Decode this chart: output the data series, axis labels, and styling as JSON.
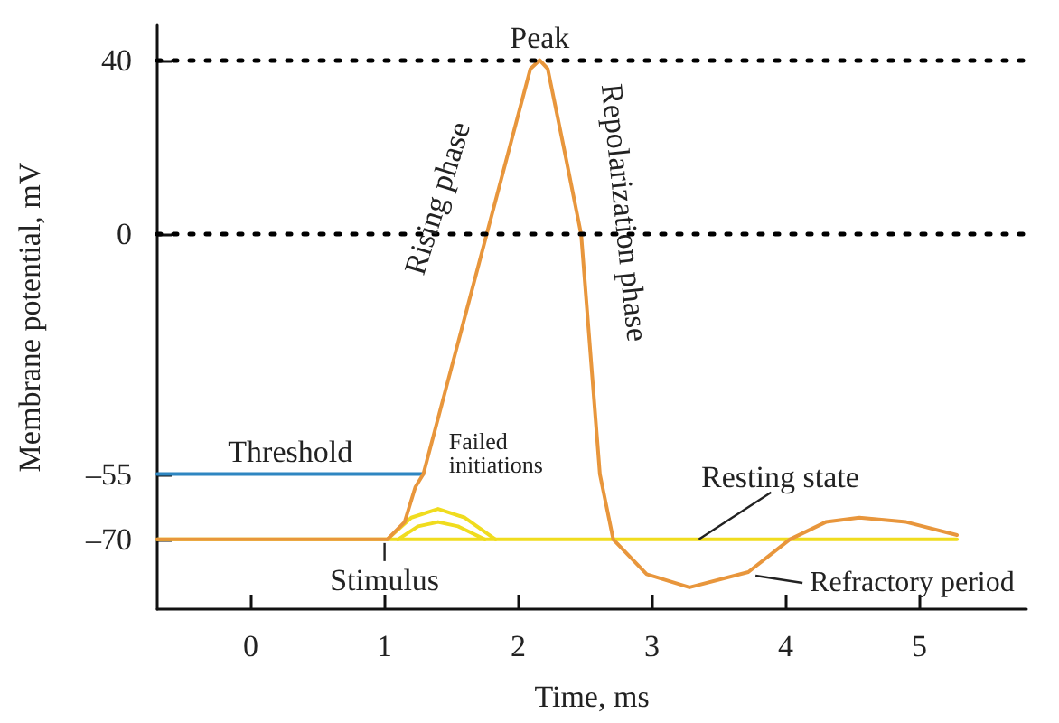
{
  "chart_data": {
    "type": "line",
    "xlabel": "Time, ms",
    "ylabel": "Membrane potential, mV",
    "xlim": [
      -0.7,
      5.8
    ],
    "xticks": [
      0,
      1,
      2,
      3,
      4,
      5
    ],
    "ylim": [
      -86,
      48
    ],
    "yticks": [
      {
        "value": -70,
        "label": "–70"
      },
      {
        "value": -55,
        "label": "–55"
      },
      0,
      40
    ],
    "marker": "none",
    "line_style": "solid",
    "series": [
      {
        "color": "#f0dc1e",
        "x": [
          -0.7,
          5.28
        ],
        "values": [
          -70,
          -70
        ]
      },
      {
        "color": "#f0dc1e",
        "x": [
          1.02,
          1.2,
          1.4,
          1.6,
          1.83
        ],
        "values": [
          -70,
          -65,
          -63,
          -65,
          -70
        ]
      },
      {
        "color": "#f0dc1e",
        "x": [
          1.1,
          1.25,
          1.4,
          1.55,
          1.75
        ],
        "values": [
          -70,
          -67,
          -66,
          -67,
          -70
        ]
      },
      {
        "name": "Threshold",
        "color": "#2e86c1",
        "x": [
          -0.7,
          1.29
        ],
        "values": [
          -55,
          -55
        ]
      },
      {
        "color": "#e8963c",
        "x": [
          -0.7,
          1.02,
          1.15,
          1.23,
          1.29,
          2.09,
          2.16,
          2.22,
          2.34,
          2.47,
          2.61,
          2.71,
          2.96,
          3.28,
          3.72,
          4.03,
          4.3,
          4.55,
          4.9,
          5.28
        ],
        "values": [
          -70,
          -70,
          -66,
          -58,
          -55,
          38,
          40,
          38,
          20,
          0,
          -55,
          -70,
          -78,
          -81,
          -77.5,
          -70,
          -66,
          -65,
          -66,
          -69
        ]
      }
    ],
    "ref_lines": [
      {
        "axis": "y",
        "value": 40,
        "color": "#000000",
        "line_style": "dotted"
      },
      {
        "axis": "y",
        "value": 0,
        "color": "#000000",
        "line_style": "dotted"
      }
    ],
    "annotations": [
      {
        "text": "Peak",
        "x": 2.16,
        "y": 40
      },
      {
        "text": "Rising phase",
        "x": 1.72,
        "y": 5
      },
      {
        "text": "Repolarization phase",
        "x": 2.47,
        "y": 5
      },
      {
        "text": "Failed initiations",
        "x": 1.4,
        "y": -63
      },
      {
        "text": "Stimulus",
        "x": 1.0,
        "y": -70
      },
      {
        "text": "Resting state",
        "x": 3.35,
        "y": -70
      },
      {
        "text": "Refractory period",
        "x": 3.72,
        "y": -77.5
      }
    ]
  }
}
